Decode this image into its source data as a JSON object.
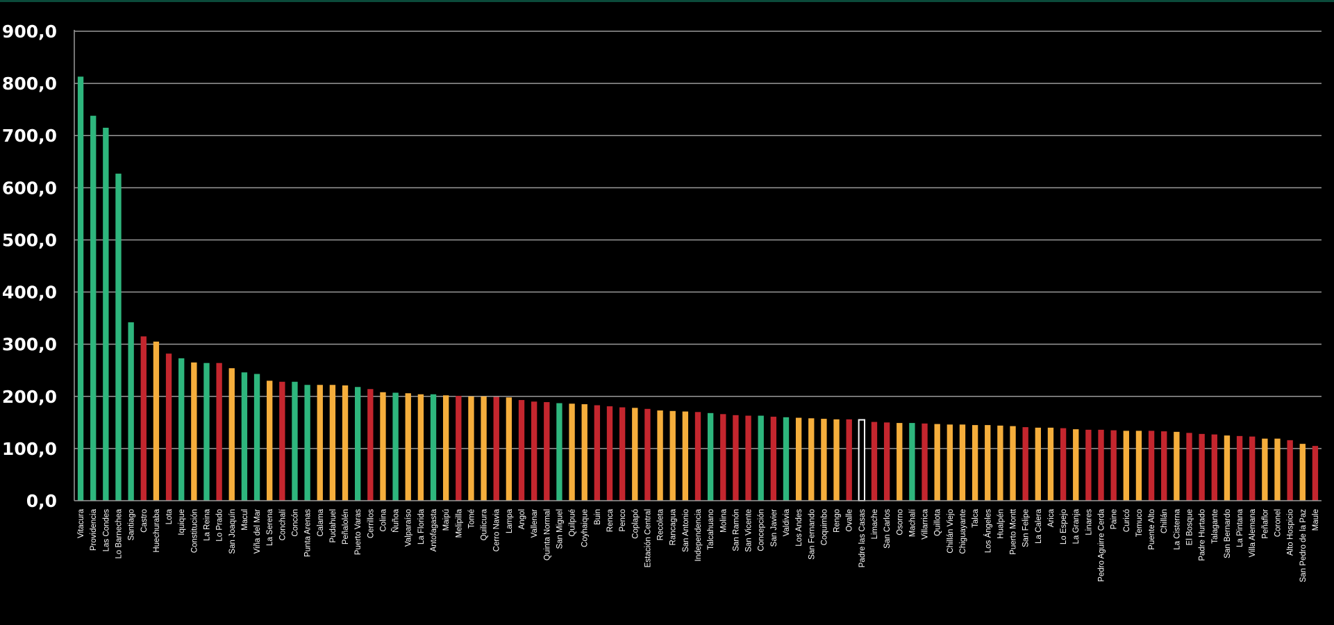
{
  "colors": {
    "background": "#000000",
    "grid": "#9a9a9a",
    "axis": "#9a9a9a",
    "text": "#ffffff",
    "green": "#2eb67d",
    "orange": "#f5ae3c",
    "red": "#c4262e",
    "highlight_fill": "#000000",
    "highlight_stroke": "#ffffff"
  },
  "chart_data": {
    "type": "bar",
    "title": "",
    "xlabel": "",
    "ylabel": "",
    "ylim": [
      0,
      900
    ],
    "yticks": [
      0,
      100,
      200,
      300,
      400,
      500,
      600,
      700,
      800,
      900
    ],
    "ytick_labels": [
      "0,0",
      "100,0",
      "200,0",
      "300,0",
      "400,0",
      "500,0",
      "600,0",
      "700,0",
      "800,0",
      "900,0"
    ],
    "grid": true,
    "legend": "none",
    "bars": [
      {
        "label": "Vitacura",
        "value": 813,
        "color": "green"
      },
      {
        "label": "Providencia",
        "value": 738,
        "color": "green"
      },
      {
        "label": "Las Condes",
        "value": 715,
        "color": "green"
      },
      {
        "label": "Lo Barnechea",
        "value": 627,
        "color": "green"
      },
      {
        "label": "Santiago",
        "value": 342,
        "color": "green"
      },
      {
        "label": "Castro",
        "value": 315,
        "color": "red"
      },
      {
        "label": "Huechuraba",
        "value": 305,
        "color": "orange"
      },
      {
        "label": "Lota",
        "value": 282,
        "color": "red"
      },
      {
        "label": "Iquique",
        "value": 273,
        "color": "green"
      },
      {
        "label": "Constitución",
        "value": 265,
        "color": "orange"
      },
      {
        "label": "La Reina",
        "value": 264,
        "color": "green"
      },
      {
        "label": "Lo Prado",
        "value": 264,
        "color": "red"
      },
      {
        "label": "San Joaquín",
        "value": 254,
        "color": "orange"
      },
      {
        "label": "Macul",
        "value": 246,
        "color": "green"
      },
      {
        "label": "Viña del Mar",
        "value": 243,
        "color": "green"
      },
      {
        "label": "La Serena",
        "value": 230,
        "color": "orange"
      },
      {
        "label": "Conchalí",
        "value": 228,
        "color": "red"
      },
      {
        "label": "Concón",
        "value": 228,
        "color": "green"
      },
      {
        "label": "Punta Arenas",
        "value": 222,
        "color": "green"
      },
      {
        "label": "Calama",
        "value": 222,
        "color": "orange"
      },
      {
        "label": "Pudahuel",
        "value": 222,
        "color": "orange"
      },
      {
        "label": "Peñalolén",
        "value": 221,
        "color": "orange"
      },
      {
        "label": "Puerto Varas",
        "value": 218,
        "color": "green"
      },
      {
        "label": "Cerrillos",
        "value": 214,
        "color": "red"
      },
      {
        "label": "Colina",
        "value": 208,
        "color": "orange"
      },
      {
        "label": "Ñuñoa",
        "value": 207,
        "color": "green"
      },
      {
        "label": "Valparaíso",
        "value": 206,
        "color": "orange"
      },
      {
        "label": "La Florida",
        "value": 204,
        "color": "orange"
      },
      {
        "label": "Antofagasta",
        "value": 204,
        "color": "green"
      },
      {
        "label": "Maipú",
        "value": 202,
        "color": "orange"
      },
      {
        "label": "Melipilla",
        "value": 201,
        "color": "red"
      },
      {
        "label": "Tomé",
        "value": 200,
        "color": "orange"
      },
      {
        "label": "Quilicura",
        "value": 200,
        "color": "orange"
      },
      {
        "label": "Cerro Navia",
        "value": 199,
        "color": "red"
      },
      {
        "label": "Lampa",
        "value": 198,
        "color": "orange"
      },
      {
        "label": "Angol",
        "value": 193,
        "color": "red"
      },
      {
        "label": "Vallenar",
        "value": 190,
        "color": "red"
      },
      {
        "label": "Quinta Normal",
        "value": 189,
        "color": "red"
      },
      {
        "label": "San Miguel",
        "value": 187,
        "color": "green"
      },
      {
        "label": "Quilpué",
        "value": 186,
        "color": "orange"
      },
      {
        "label": "Coyhaique",
        "value": 185,
        "color": "orange"
      },
      {
        "label": "Buin",
        "value": 183,
        "color": "red"
      },
      {
        "label": "Renca",
        "value": 181,
        "color": "red"
      },
      {
        "label": "Penco",
        "value": 179,
        "color": "red"
      },
      {
        "label": "Coplapó",
        "value": 178,
        "color": "orange"
      },
      {
        "label": "Estación Central",
        "value": 176,
        "color": "red"
      },
      {
        "label": "Recoleta",
        "value": 173,
        "color": "orange"
      },
      {
        "label": "Rancagua",
        "value": 172,
        "color": "orange"
      },
      {
        "label": "San Antonio",
        "value": 171,
        "color": "orange"
      },
      {
        "label": "Independencia",
        "value": 170,
        "color": "red"
      },
      {
        "label": "Talcahuano",
        "value": 168,
        "color": "green"
      },
      {
        "label": "Molina",
        "value": 166,
        "color": "red"
      },
      {
        "label": "San Ramón",
        "value": 164,
        "color": "red"
      },
      {
        "label": "San Vicente",
        "value": 163,
        "color": "red"
      },
      {
        "label": "Concepción",
        "value": 163,
        "color": "green"
      },
      {
        "label": "San Javier",
        "value": 161,
        "color": "red"
      },
      {
        "label": "Valdivia",
        "value": 160,
        "color": "green"
      },
      {
        "label": "Los Andes",
        "value": 159,
        "color": "orange"
      },
      {
        "label": "San Fernando",
        "value": 158,
        "color": "orange"
      },
      {
        "label": "Coquimbo",
        "value": 157,
        "color": "orange"
      },
      {
        "label": "Rengo",
        "value": 156,
        "color": "orange"
      },
      {
        "label": "Ovalle",
        "value": 156,
        "color": "red"
      },
      {
        "label": "Padre las Casas",
        "value": 155,
        "color": "highlight"
      },
      {
        "label": "Limache",
        "value": 151,
        "color": "red"
      },
      {
        "label": "San Carlos",
        "value": 150,
        "color": "red"
      },
      {
        "label": "Osorno",
        "value": 149,
        "color": "orange"
      },
      {
        "label": "Machalí",
        "value": 149,
        "color": "green"
      },
      {
        "label": "Villarrica",
        "value": 148,
        "color": "red"
      },
      {
        "label": "Quillota",
        "value": 147,
        "color": "orange"
      },
      {
        "label": "Chillán Viejo",
        "value": 146,
        "color": "orange"
      },
      {
        "label": "Chiguayante",
        "value": 146,
        "color": "orange"
      },
      {
        "label": "Talca",
        "value": 145,
        "color": "orange"
      },
      {
        "label": "Los Ángeles",
        "value": 145,
        "color": "orange"
      },
      {
        "label": "Hualpén",
        "value": 144,
        "color": "orange"
      },
      {
        "label": "Puerto Montt",
        "value": 143,
        "color": "orange"
      },
      {
        "label": "San Felipe",
        "value": 141,
        "color": "red"
      },
      {
        "label": "La Calera",
        "value": 140,
        "color": "orange"
      },
      {
        "label": "Arica",
        "value": 140,
        "color": "orange"
      },
      {
        "label": "Lo Espejo",
        "value": 139,
        "color": "red"
      },
      {
        "label": "La Granja",
        "value": 137,
        "color": "orange"
      },
      {
        "label": "Linares",
        "value": 136,
        "color": "red"
      },
      {
        "label": "Pedro Aguirre Cerda",
        "value": 136,
        "color": "red"
      },
      {
        "label": "Paine",
        "value": 135,
        "color": "red"
      },
      {
        "label": "Curicó",
        "value": 134,
        "color": "orange"
      },
      {
        "label": "Temuco",
        "value": 134,
        "color": "orange"
      },
      {
        "label": "Puente Alto",
        "value": 134,
        "color": "red"
      },
      {
        "label": "Chillán",
        "value": 133,
        "color": "red"
      },
      {
        "label": "La Cisterna",
        "value": 132,
        "color": "orange"
      },
      {
        "label": "El Bosque",
        "value": 130,
        "color": "red"
      },
      {
        "label": "Padre Hurtado",
        "value": 128,
        "color": "red"
      },
      {
        "label": "Talagante",
        "value": 127,
        "color": "red"
      },
      {
        "label": "San Bernardo",
        "value": 125,
        "color": "orange"
      },
      {
        "label": "La Pintana",
        "value": 124,
        "color": "red"
      },
      {
        "label": "Villa Alemana",
        "value": 123,
        "color": "red"
      },
      {
        "label": "Peñaflor",
        "value": 119,
        "color": "orange"
      },
      {
        "label": "Coronel",
        "value": 119,
        "color": "orange"
      },
      {
        "label": "Alto Hospicio",
        "value": 116,
        "color": "red"
      },
      {
        "label": "San Pedro de la Paz",
        "value": 109,
        "color": "orange"
      },
      {
        "label": "Maule",
        "value": 105,
        "color": "red"
      }
    ]
  }
}
